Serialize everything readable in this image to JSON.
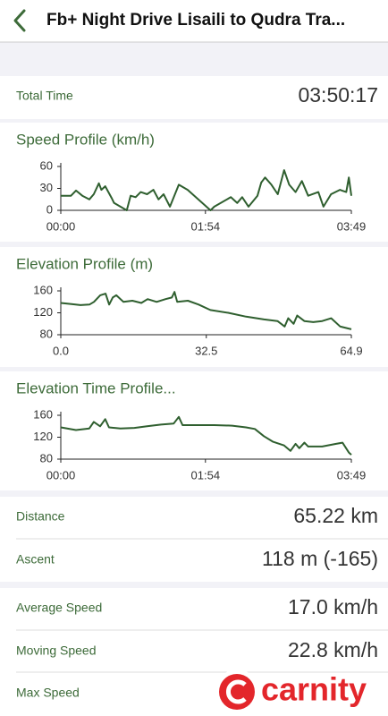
{
  "header": {
    "title": "Fb+ Night Drive Lisaili to Qudra Tra..."
  },
  "total_time": {
    "label": "Total Time",
    "value": "03:50:17"
  },
  "chart_data": [
    {
      "type": "line",
      "title": "Speed Profile (km/h)",
      "color": "#2f5f2f",
      "x": [
        0,
        8,
        12,
        17,
        22.5,
        26,
        30,
        32,
        35,
        40,
        42,
        52,
        55,
        59,
        63,
        68,
        73,
        77,
        81,
        86,
        93,
        100,
        118,
        121,
        134,
        139,
        143,
        148,
        155,
        158,
        161,
        166,
        171,
        176,
        180,
        185,
        190,
        195,
        203,
        207,
        213,
        220,
        225,
        227,
        229
      ],
      "values": [
        20,
        20,
        27,
        20,
        15,
        22,
        37,
        28,
        33,
        17,
        10,
        0,
        20,
        18,
        25,
        22,
        28,
        15,
        22,
        5,
        35,
        28,
        0,
        5,
        18,
        10,
        18,
        5,
        20,
        38,
        45,
        35,
        22,
        55,
        35,
        25,
        40,
        20,
        25,
        5,
        22,
        28,
        25,
        45,
        20
      ],
      "xlim": [
        0,
        229
      ],
      "xticks": [
        {
          "value": 0,
          "label": "00:00"
        },
        {
          "value": 114,
          "label": "01:54"
        },
        {
          "value": 229,
          "label": "03:49"
        }
      ],
      "ylim": [
        0,
        60
      ],
      "yticks": [
        0,
        30,
        60
      ]
    },
    {
      "type": "line",
      "title": "Elevation Profile (m)",
      "color": "#2f5f2f",
      "x": [
        0,
        2.4,
        4.4,
        6.4,
        7.4,
        8.8,
        10,
        10.8,
        11.6,
        12.4,
        14,
        16,
        18,
        19.4,
        21.4,
        23.4,
        24.8,
        25.4,
        26,
        28.4,
        30.8,
        33.4,
        37.4,
        41.4,
        45.4,
        48.4,
        50,
        50.8,
        52,
        52.8,
        54.4,
        56.4,
        58.4,
        60.4,
        62.4,
        64.9
      ],
      "values": [
        138,
        136,
        134,
        135,
        140,
        152,
        155,
        135,
        148,
        152,
        140,
        142,
        138,
        145,
        140,
        145,
        148,
        158,
        140,
        142,
        135,
        125,
        120,
        113,
        108,
        105,
        95,
        110,
        100,
        115,
        105,
        103,
        105,
        110,
        95,
        90
      ],
      "xlim": [
        0,
        64.9
      ],
      "xticks": [
        {
          "value": 0,
          "label": "0.0"
        },
        32.5,
        64.9
      ],
      "ylim": [
        80,
        160
      ],
      "yticks": [
        80,
        120,
        160
      ]
    },
    {
      "type": "line",
      "title": "Elevation Time Profile...",
      "color": "#2f5f2f",
      "x": [
        0,
        12,
        22.5,
        26,
        31,
        35,
        38,
        47,
        58,
        68,
        79,
        89,
        93,
        96,
        121,
        135,
        146,
        153,
        160,
        167,
        176,
        181,
        185,
        188,
        192,
        195,
        206,
        217,
        222,
        227,
        229
      ],
      "values": [
        138,
        133,
        136,
        148,
        140,
        153,
        138,
        136,
        137,
        140,
        143,
        145,
        157,
        142,
        142,
        141,
        138,
        135,
        122,
        112,
        105,
        95,
        108,
        100,
        110,
        103,
        103,
        108,
        110,
        92,
        88
      ],
      "xlim": [
        0,
        229
      ],
      "xticks": [
        {
          "value": 0,
          "label": "00:00"
        },
        {
          "value": 114,
          "label": "01:54"
        },
        {
          "value": 229,
          "label": "03:49"
        }
      ],
      "ylim": [
        80,
        160
      ],
      "yticks": [
        80,
        120,
        160
      ]
    }
  ],
  "stats": [
    {
      "label": "Distance",
      "value": "65.22 km"
    },
    {
      "label": "Ascent",
      "value": "118 m (-165)"
    },
    {
      "label": "Average Speed",
      "value": "17.0 km/h"
    },
    {
      "label": "Moving Speed",
      "value": "22.8 km/h"
    },
    {
      "label": "Max Speed"
    }
  ],
  "watermark": "carnity"
}
